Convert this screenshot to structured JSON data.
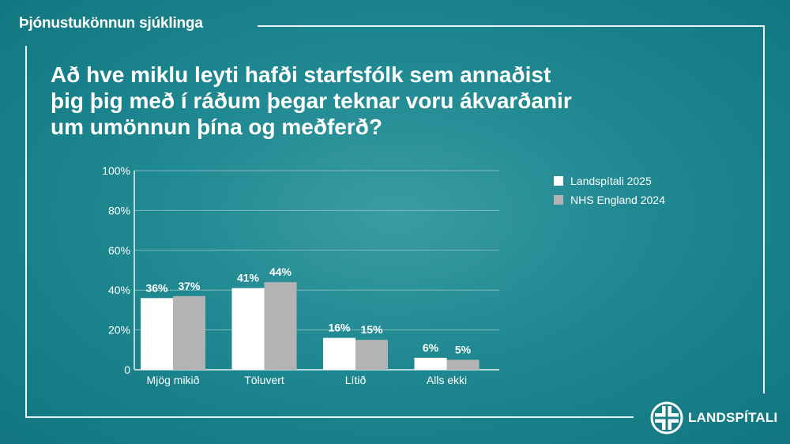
{
  "header": {
    "survey_label": "Þjónustukönnun sjúklinga"
  },
  "question_lines": [
    "Að hve miklu leyti hafði starfsfólk sem annaðist",
    "þig þig með í ráðum þegar teknar voru ákvarðanir",
    "um umönnun þína og meðferð?"
  ],
  "colors": {
    "series1": "#ffffff",
    "series2": "#b3b3b3",
    "grid": "#7fb8bc"
  },
  "chart_data": {
    "type": "bar",
    "title": "",
    "xlabel": "",
    "ylabel": "",
    "ylim": [
      0,
      100
    ],
    "yticks": [
      "0",
      "20%",
      "40%",
      "60%",
      "80%",
      "100%"
    ],
    "ytick_values": [
      0,
      20,
      40,
      60,
      80,
      100
    ],
    "grid": true,
    "legend_position": "right",
    "categories": [
      "Mjög mikið",
      "Töluvert",
      "Lítið",
      "Alls ekki"
    ],
    "series": [
      {
        "name": "Landspítali 2025",
        "values": [
          36,
          41,
          16,
          6
        ],
        "labels": [
          "36%",
          "41%",
          "16%",
          "6%"
        ]
      },
      {
        "name": "NHS England 2024",
        "values": [
          37,
          44,
          15,
          5
        ],
        "labels": [
          "37%",
          "44%",
          "15%",
          "5%"
        ]
      }
    ]
  },
  "logo": {
    "text": "LANDSPÍTALI",
    "icon": "hospital-cross-icon"
  }
}
